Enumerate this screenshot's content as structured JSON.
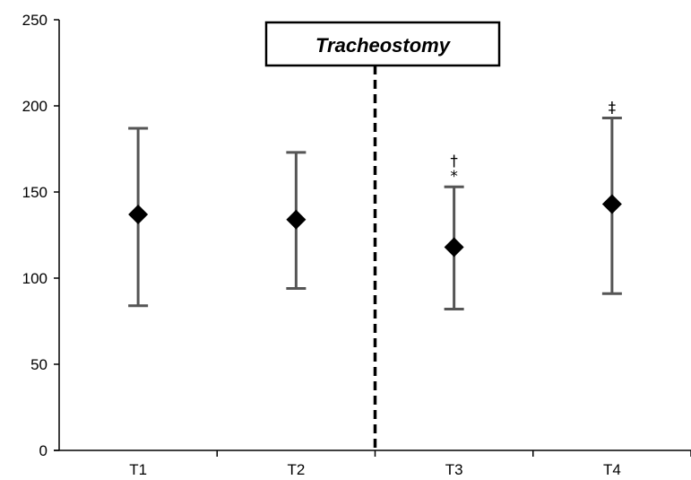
{
  "chart_data": {
    "type": "scatter",
    "title": "",
    "xlabel": "",
    "ylabel": "",
    "categories": [
      "T1",
      "T2",
      "T3",
      "T4"
    ],
    "series": [
      {
        "means": [
          137,
          134,
          118,
          143
        ],
        "lower": [
          84,
          94,
          82,
          91
        ],
        "upper": [
          187,
          173,
          153,
          193
        ]
      }
    ],
    "ylim": [
      0,
      250
    ],
    "yticks": [
      "0",
      "50",
      "100",
      "150",
      "200",
      "250"
    ],
    "grid": false,
    "marker": "diamond",
    "marker_color": "#000000",
    "errorbar_color": "#555555",
    "divider": {
      "between": [
        "T2",
        "T3"
      ],
      "style": "dashed",
      "label": "Tracheostomy"
    },
    "significance_marks": [
      {
        "category": "T3",
        "lines": [
          "†",
          "*"
        ]
      },
      {
        "category": "T4",
        "lines": [
          "‡"
        ]
      }
    ]
  }
}
